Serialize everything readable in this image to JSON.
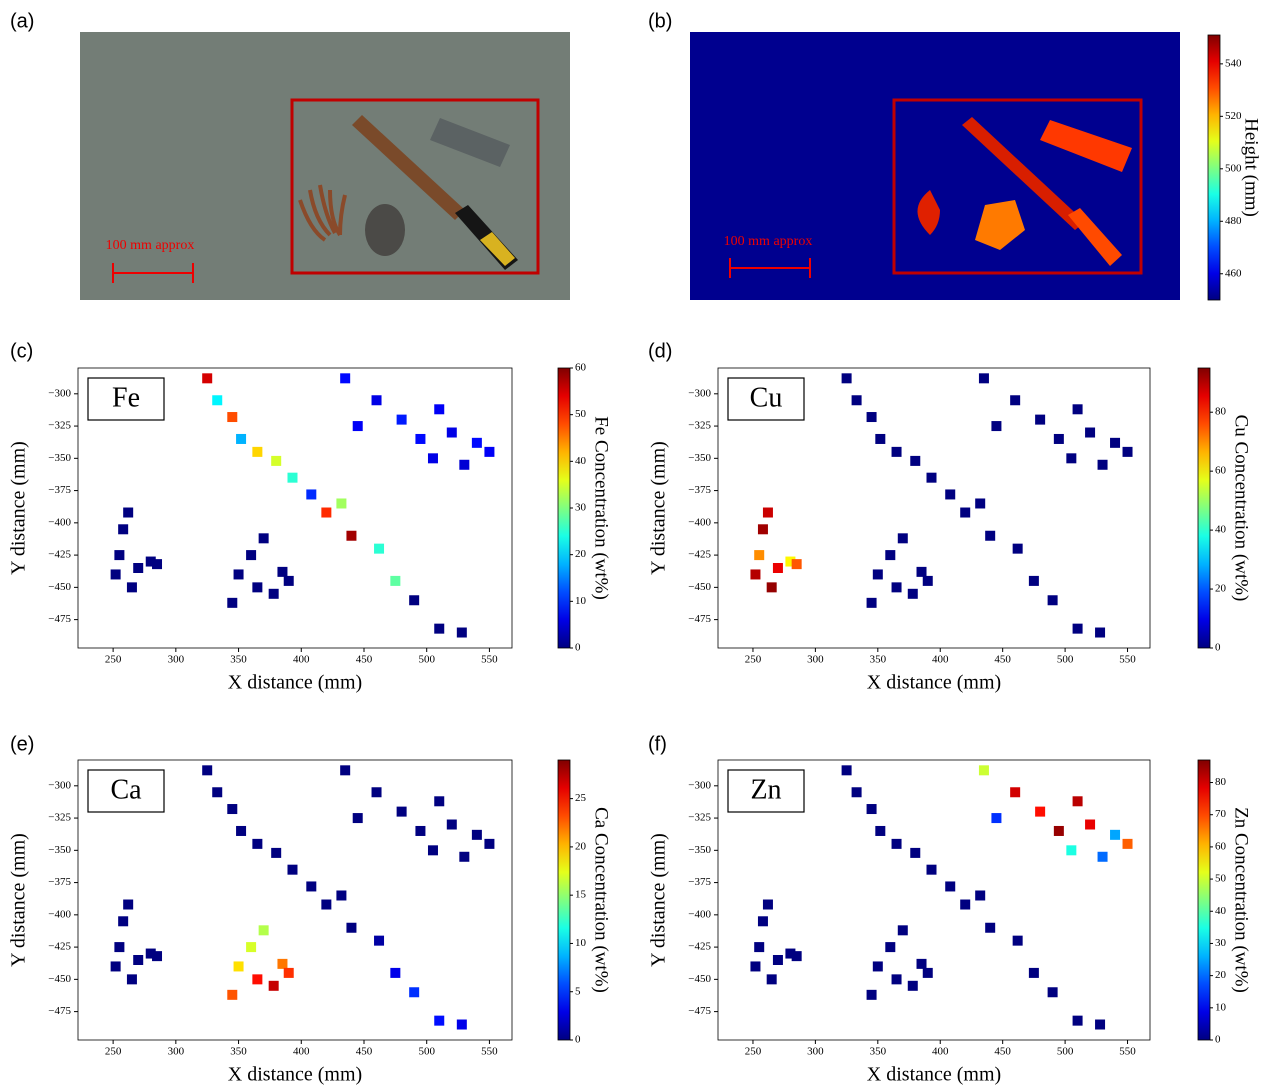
{
  "chart_data": [
    {
      "type": "image",
      "label": "(a)",
      "annotation": "100 mm approx"
    },
    {
      "type": "heatmap",
      "label": "(b)",
      "annotation": "100 mm approx",
      "colorbar_label": "Height (mm)",
      "colormap": "jet",
      "clim": [
        450,
        551
      ],
      "cticks": [
        460,
        480,
        500,
        520,
        540
      ]
    },
    {
      "type": "scatter",
      "label": "(c)",
      "element": "Fe",
      "xlabel": "X distance (mm)",
      "ylabel": "Y distance (mm)",
      "colorbar_label": "Fe Concentration (wt%)",
      "colormap": "jet",
      "x": [
        252,
        258,
        262,
        255,
        270,
        265,
        280,
        285,
        345,
        350,
        360,
        370,
        378,
        385,
        390,
        365,
        325,
        333,
        345,
        352,
        365,
        380,
        393,
        408,
        420,
        432,
        440,
        462,
        475,
        490,
        510,
        528,
        435,
        445,
        460,
        480,
        495,
        510,
        520,
        530,
        540,
        550,
        505
      ],
      "y": [
        -440,
        -405,
        -392,
        -425,
        -435,
        -450,
        -430,
        -432,
        -462,
        -440,
        -425,
        -412,
        -455,
        -438,
        -445,
        -450,
        -288,
        -305,
        -318,
        -335,
        -345,
        -352,
        -365,
        -378,
        -392,
        -385,
        -410,
        -420,
        -445,
        -460,
        -482,
        -485,
        -288,
        -325,
        -305,
        -320,
        -335,
        -312,
        -330,
        -355,
        -338,
        -345,
        -350
      ],
      "values": [
        0,
        0,
        0,
        0,
        0,
        0,
        0,
        0,
        0,
        0,
        0,
        0,
        0,
        0,
        0,
        0,
        55,
        22,
        48,
        18,
        40,
        35,
        25,
        10,
        50,
        32,
        58,
        25,
        28,
        0,
        0,
        0,
        8,
        7,
        6,
        9,
        8,
        7,
        6,
        5,
        8,
        7,
        6
      ],
      "xlim": [
        222,
        568
      ],
      "ylim": [
        -497,
        -280
      ],
      "xticks": [
        250,
        300,
        350,
        400,
        450,
        500,
        550
      ],
      "yticks": [
        {
          "value": -300,
          "label": "−300"
        },
        {
          "value": -325,
          "label": "−325"
        },
        {
          "value": -350,
          "label": "−350"
        },
        {
          "value": -375,
          "label": "−375"
        },
        {
          "value": -400,
          "label": "−400"
        },
        {
          "value": -425,
          "label": "−425"
        },
        {
          "value": -450,
          "label": "−450"
        },
        {
          "value": -475,
          "label": "−475"
        }
      ],
      "clim": [
        0,
        60
      ],
      "cticks": [
        0,
        10,
        20,
        30,
        40,
        50,
        60
      ]
    },
    {
      "type": "scatter",
      "label": "(d)",
      "element": "Cu",
      "xlabel": "X distance (mm)",
      "ylabel": "Y distance (mm)",
      "colorbar_label": "Cu Concentration (wt%)",
      "colormap": "jet",
      "x": [
        252,
        258,
        262,
        255,
        270,
        265,
        280,
        285,
        345,
        350,
        360,
        370,
        378,
        385,
        390,
        365,
        325,
        333,
        345,
        352,
        365,
        380,
        393,
        408,
        420,
        432,
        440,
        462,
        475,
        490,
        510,
        528,
        435,
        445,
        460,
        480,
        495,
        510,
        520,
        530,
        540,
        550,
        505
      ],
      "y": [
        -440,
        -405,
        -392,
        -425,
        -435,
        -450,
        -430,
        -432,
        -462,
        -440,
        -425,
        -412,
        -455,
        -438,
        -445,
        -450,
        -288,
        -305,
        -318,
        -335,
        -345,
        -352,
        -365,
        -378,
        -392,
        -385,
        -410,
        -420,
        -445,
        -460,
        -482,
        -485,
        -288,
        -325,
        -305,
        -320,
        -335,
        -312,
        -330,
        -355,
        -338,
        -345,
        -350
      ],
      "values": [
        90,
        92,
        88,
        70,
        85,
        93,
        60,
        75,
        0,
        0,
        0,
        0,
        0,
        0,
        0,
        0,
        0,
        0,
        0,
        0,
        0,
        0,
        0,
        0,
        0,
        0,
        0,
        0,
        0,
        0,
        0,
        0,
        0,
        0,
        0,
        0,
        0,
        0,
        0,
        0,
        0,
        0,
        0
      ],
      "xlim": [
        222,
        568
      ],
      "ylim": [
        -497,
        -280
      ],
      "xticks": [
        250,
        300,
        350,
        400,
        450,
        500,
        550
      ],
      "yticks": [
        {
          "value": -300,
          "label": "−300"
        },
        {
          "value": -325,
          "label": "−325"
        },
        {
          "value": -350,
          "label": "−350"
        },
        {
          "value": -375,
          "label": "−375"
        },
        {
          "value": -400,
          "label": "−400"
        },
        {
          "value": -425,
          "label": "−425"
        },
        {
          "value": -450,
          "label": "−450"
        },
        {
          "value": -475,
          "label": "−475"
        }
      ],
      "clim": [
        0,
        95
      ],
      "cticks": [
        0,
        20,
        40,
        60,
        80
      ]
    },
    {
      "type": "scatter",
      "label": "(e)",
      "element": "Ca",
      "xlabel": "X distance (mm)",
      "ylabel": "Y distance (mm)",
      "colorbar_label": "Ca Concentration (wt%)",
      "colormap": "jet",
      "x": [
        252,
        258,
        262,
        255,
        270,
        265,
        280,
        285,
        345,
        350,
        360,
        370,
        378,
        385,
        390,
        365,
        325,
        333,
        345,
        352,
        365,
        380,
        393,
        408,
        420,
        432,
        440,
        462,
        475,
        490,
        510,
        528,
        435,
        445,
        460,
        480,
        495,
        510,
        520,
        530,
        540,
        550,
        505
      ],
      "y": [
        -440,
        -405,
        -392,
        -425,
        -435,
        -450,
        -430,
        -432,
        -462,
        -440,
        -425,
        -412,
        -455,
        -438,
        -445,
        -450,
        -288,
        -305,
        -318,
        -335,
        -345,
        -352,
        -365,
        -378,
        -392,
        -385,
        -410,
        -420,
        -445,
        -460,
        -482,
        -485,
        -288,
        -325,
        -305,
        -320,
        -335,
        -312,
        -330,
        -355,
        -338,
        -345,
        -350
      ],
      "values": [
        0,
        0,
        0,
        0,
        0,
        0,
        0,
        0,
        23,
        19,
        17,
        16,
        27,
        22,
        24,
        25,
        0,
        0,
        0,
        0,
        0,
        0,
        0,
        0,
        0,
        0,
        0,
        1,
        3,
        5,
        4,
        3,
        0,
        0,
        0,
        0,
        0,
        0,
        0,
        0,
        0,
        0,
        0
      ],
      "xlim": [
        222,
        568
      ],
      "ylim": [
        -497,
        -280
      ],
      "xticks": [
        250,
        300,
        350,
        400,
        450,
        500,
        550
      ],
      "yticks": [
        {
          "value": -300,
          "label": "−300"
        },
        {
          "value": -325,
          "label": "−325"
        },
        {
          "value": -350,
          "label": "−350"
        },
        {
          "value": -375,
          "label": "−375"
        },
        {
          "value": -400,
          "label": "−400"
        },
        {
          "value": -425,
          "label": "−425"
        },
        {
          "value": -450,
          "label": "−450"
        },
        {
          "value": -475,
          "label": "−475"
        }
      ],
      "clim": [
        0,
        29
      ],
      "cticks": [
        0,
        5,
        10,
        15,
        20,
        25
      ]
    },
    {
      "type": "scatter",
      "label": "(f)",
      "element": "Zn",
      "xlabel": "X distance (mm)",
      "ylabel": "Y distance (mm)",
      "colorbar_label": "Zn Concentration (wt%)",
      "colormap": "jet",
      "x": [
        252,
        258,
        262,
        255,
        270,
        265,
        280,
        285,
        345,
        350,
        360,
        370,
        378,
        385,
        390,
        365,
        325,
        333,
        345,
        352,
        365,
        380,
        393,
        408,
        420,
        432,
        440,
        462,
        475,
        490,
        510,
        528,
        435,
        445,
        460,
        480,
        495,
        510,
        520,
        530,
        540,
        550,
        505
      ],
      "y": [
        -440,
        -405,
        -392,
        -425,
        -435,
        -450,
        -430,
        -432,
        -462,
        -440,
        -425,
        -412,
        -455,
        -438,
        -445,
        -450,
        -288,
        -305,
        -318,
        -335,
        -345,
        -352,
        -365,
        -378,
        -392,
        -385,
        -410,
        -420,
        -445,
        -460,
        -482,
        -485,
        -288,
        -325,
        -305,
        -320,
        -335,
        -312,
        -330,
        -355,
        -338,
        -345,
        -350
      ],
      "values": [
        0,
        0,
        0,
        0,
        0,
        0,
        0,
        0,
        0,
        0,
        0,
        0,
        0,
        0,
        0,
        0,
        0,
        0,
        0,
        0,
        0,
        0,
        0,
        0,
        0,
        0,
        0,
        0,
        0,
        0,
        0,
        0,
        50,
        15,
        80,
        75,
        85,
        82,
        78,
        20,
        25,
        68,
        35
      ],
      "xlim": [
        222,
        568
      ],
      "ylim": [
        -497,
        -280
      ],
      "xticks": [
        250,
        300,
        350,
        400,
        450,
        500,
        550
      ],
      "yticks": [
        {
          "value": -300,
          "label": "−300"
        },
        {
          "value": -325,
          "label": "−325"
        },
        {
          "value": -350,
          "label": "−350"
        },
        {
          "value": -375,
          "label": "−375"
        },
        {
          "value": -400,
          "label": "−400"
        },
        {
          "value": -425,
          "label": "−425"
        },
        {
          "value": -450,
          "label": "−450"
        },
        {
          "value": -475,
          "label": "−475"
        }
      ],
      "clim": [
        0,
        87
      ],
      "cticks": [
        0,
        10,
        20,
        30,
        40,
        50,
        60,
        70,
        80
      ]
    }
  ]
}
